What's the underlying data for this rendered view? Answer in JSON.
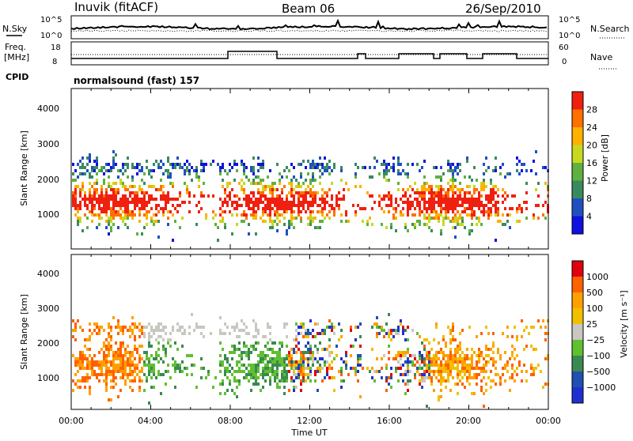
{
  "header": {
    "station": "Inuvik (fitACF)",
    "beam": "Beam 06",
    "date": "26/Sep/2010"
  },
  "noise_panel": {
    "left_label": "N.Sky",
    "left_ticks": [
      "10^5",
      "10^0"
    ],
    "right_ticks": [
      "10^5",
      "10^0"
    ],
    "right_label": "N.Search"
  },
  "freq_panel": {
    "left_label_1": "Freq.",
    "left_label_2": "[MHz]",
    "left_ticks": [
      "18",
      "8"
    ],
    "right_ticks": [
      "60",
      "0"
    ],
    "right_label": "Nave"
  },
  "cpid": {
    "label": "CPID",
    "program": "normalsound (fast)  157"
  },
  "colors": {
    "power": [
      "#1010e0",
      "#2050c0",
      "#3a8a60",
      "#60b040",
      "#c8d820",
      "#ffb000",
      "#ff7000",
      "#f02010"
    ],
    "velocity": [
      "#e00010",
      "#ff6000",
      "#ffa000",
      "#f0c000",
      "#c8c8c0",
      "#60c030",
      "#3a8a50",
      "#2050b0",
      "#2030d0"
    ]
  },
  "chart_data": [
    {
      "type": "heatmap",
      "title": "",
      "xlabel": "",
      "ylabel": "Slant Range [km]",
      "x_ticks": [
        "00:00",
        "04:00",
        "08:00",
        "12:00",
        "16:00",
        "20:00",
        "00:00"
      ],
      "y_ticks": [
        "1000",
        "2000",
        "3000",
        "4000"
      ],
      "ylim": [
        200,
        4500
      ],
      "colorbar": {
        "label": "Power [dB]",
        "ticks": [
          "4",
          "8",
          "12",
          "16",
          "20",
          "24",
          "28"
        ],
        "range": [
          0,
          32
        ]
      }
    },
    {
      "type": "heatmap",
      "title": "",
      "xlabel": "Time UT",
      "ylabel": "Slant Range [km]",
      "x_ticks": [
        "00:00",
        "04:00",
        "08:00",
        "12:00",
        "16:00",
        "20:00",
        "00:00"
      ],
      "y_ticks": [
        "1000",
        "2000",
        "3000",
        "4000"
      ],
      "ylim": [
        200,
        4500
      ],
      "colorbar": {
        "label": "Velocity [m s⁻¹]",
        "ticks": [
          "1000",
          "500",
          "100",
          "25",
          "−25",
          "−100",
          "−500",
          "−1000"
        ]
      }
    }
  ]
}
